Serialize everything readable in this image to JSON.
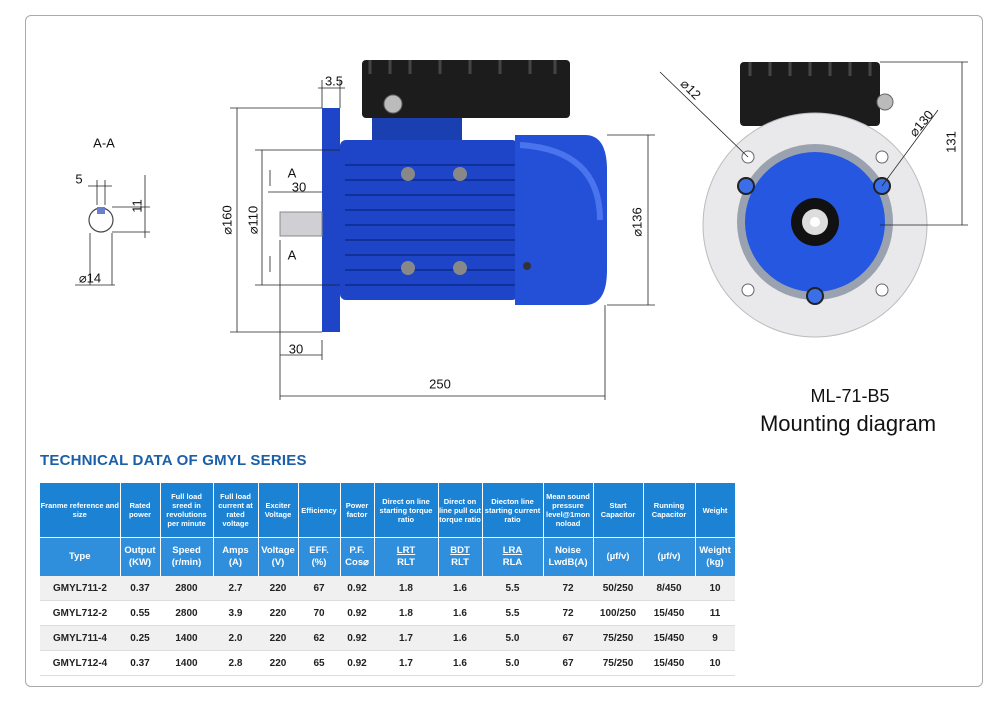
{
  "drawing": {
    "section_label": "A-A",
    "section_dims": [
      "5",
      "11",
      "⌀14"
    ],
    "side_dims": {
      "flange_gap": "3.5",
      "section_top": "A",
      "shaft_key": "30",
      "section_bottom": "A",
      "flange_dia": "⌀160",
      "spigot_dia": "⌀110",
      "body_dia": "⌀136",
      "shaft_len": "30",
      "total_len": "250"
    },
    "end_dims": {
      "hole_dia": "⌀12",
      "pcd": "⌀130",
      "height": "131"
    },
    "model": "ML-71-B5",
    "caption": "Mounting diagram"
  },
  "table": {
    "title": "TECHNICAL DATA OF GMYL SERIES",
    "header": [
      "Franme reference and size",
      "Rated power",
      "Full load sreed in revolutions per minute",
      "Full load current at rated voltage",
      "Exciter Voltage",
      "Efficiency",
      "Power factor",
      "Direct on line starting torque ratio",
      "Direct on line pull out torque ratio",
      "Diecton line starting current ratio",
      "Mean sound pressure level@1mon noload",
      "Start Capacitor",
      "Running Capacitor",
      "Weight"
    ],
    "subheader": [
      [
        "Type"
      ],
      [
        "Output",
        "(KW)"
      ],
      [
        "Speed",
        "(r/min)"
      ],
      [
        "Amps",
        "(A)"
      ],
      [
        "Voltage",
        "(V)"
      ],
      [
        "EFF.",
        "(%)"
      ],
      [
        "P.F.",
        "Cos⌀"
      ],
      [
        "LRT",
        "RLT"
      ],
      [
        "BDT",
        "RLT"
      ],
      [
        "LRA",
        "RLA"
      ],
      [
        "Noise",
        "LwdB(A)"
      ],
      [
        "(µf/v)"
      ],
      [
        "(µf/v)"
      ],
      [
        "Weight",
        "(kg)"
      ]
    ],
    "rows": [
      [
        "GMYL711-2",
        "0.37",
        "2800",
        "2.7",
        "220",
        "67",
        "0.92",
        "1.8",
        "1.6",
        "5.5",
        "72",
        "50/250",
        "8/450",
        "10"
      ],
      [
        "GMYL712-2",
        "0.55",
        "2800",
        "3.9",
        "220",
        "70",
        "0.92",
        "1.8",
        "1.6",
        "5.5",
        "72",
        "100/250",
        "15/450",
        "11"
      ],
      [
        "GMYL711-4",
        "0.25",
        "1400",
        "2.0",
        "220",
        "62",
        "0.92",
        "1.7",
        "1.6",
        "5.0",
        "67",
        "75/250",
        "15/450",
        "9"
      ],
      [
        "GMYL712-4",
        "0.37",
        "1400",
        "2.8",
        "220",
        "65",
        "0.92",
        "1.7",
        "1.6",
        "5.0",
        "67",
        "75/250",
        "15/450",
        "10"
      ]
    ]
  }
}
